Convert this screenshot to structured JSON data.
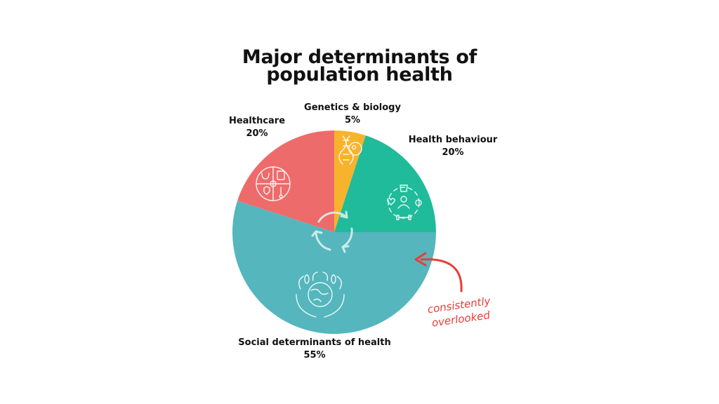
{
  "chart_data": {
    "type": "pie",
    "title": "Major determinants of population health",
    "title_lines": [
      "Major determinants of",
      "population health"
    ],
    "slices": [
      {
        "label": "Genetics & biology",
        "value": 5,
        "value_label": "5%",
        "color": "#f7b32b",
        "icon": "dna-cell-icon"
      },
      {
        "label": "Health behaviour",
        "value": 20,
        "value_label": "20%",
        "color": "#20bb9b",
        "icon": "lifestyle-icon"
      },
      {
        "label": "Social determinants of health",
        "value": 55,
        "value_label": "55%",
        "color": "#55b6bd",
        "icon": "earth-in-hands-icon"
      },
      {
        "label": "Healthcare",
        "value": 20,
        "value_label": "20%",
        "color": "#ee6b6b",
        "icon": "medical-services-icon"
      }
    ],
    "start_angle": "12 o'clock, clockwise",
    "center_icon": "cycle-arrows-icon",
    "annotation": {
      "lines": [
        "consistently",
        "overlooked"
      ],
      "color": "#ec3b36",
      "points_to": "Social determinants of health"
    }
  }
}
